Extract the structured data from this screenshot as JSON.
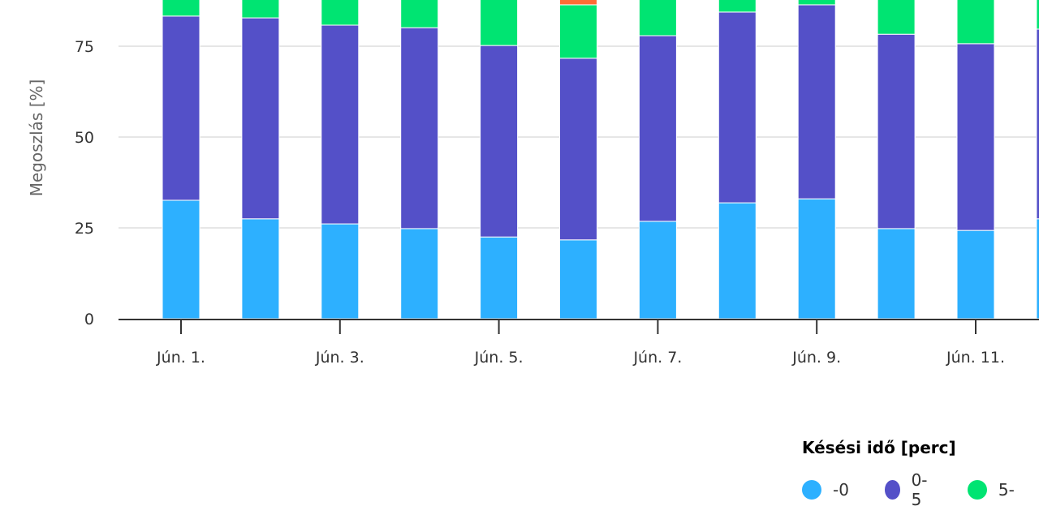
{
  "chart_data": {
    "type": "bar",
    "stacked": true,
    "title": "",
    "xlabel": "",
    "ylabel": "Megoszlás [%]",
    "ylim": [
      0,
      100
    ],
    "yticks": [
      0,
      25,
      50,
      75
    ],
    "grid": true,
    "categories": [
      "Jún. 1.",
      "Jún. 2.",
      "Jún. 3.",
      "Jún. 4.",
      "Jún. 5.",
      "Jún. 6.",
      "Jún. 7.",
      "Jún. 8.",
      "Jún. 9.",
      "Jún. 10.",
      "Jún. 11.",
      "Jún. 12."
    ],
    "tick_labels": [
      "Jún. 1.",
      "Jún. 3.",
      "Jún. 5.",
      "Jún. 7.",
      "Jún. 9.",
      "Jún. 11."
    ],
    "legend_title": "Késési idő [perc]",
    "legend_position": "bottom-right",
    "series": [
      {
        "name": "-0",
        "color": "#2db0ff",
        "values": [
          32.6,
          27.5,
          26.1,
          24.8,
          22.5,
          21.7,
          26.8,
          31.9,
          33.0,
          24.8,
          24.3,
          27.5
        ]
      },
      {
        "name": "0-5",
        "color": "#5450c8",
        "values": [
          50.7,
          55.3,
          54.7,
          55.3,
          52.7,
          50.0,
          51.1,
          52.5,
          53.4,
          53.5,
          51.4,
          52.2
        ]
      },
      {
        "name": "5-",
        "color": "#00e472",
        "values": [
          16.7,
          17.2,
          19.2,
          19.9,
          24.8,
          14.7,
          22.1,
          15.6,
          13.6,
          21.7,
          24.3,
          20.3
        ]
      },
      {
        "color": "#ff6b35",
        "values": [
          0,
          0,
          0,
          0,
          0,
          13.6,
          0,
          0,
          0,
          0,
          0,
          0
        ]
      }
    ]
  }
}
